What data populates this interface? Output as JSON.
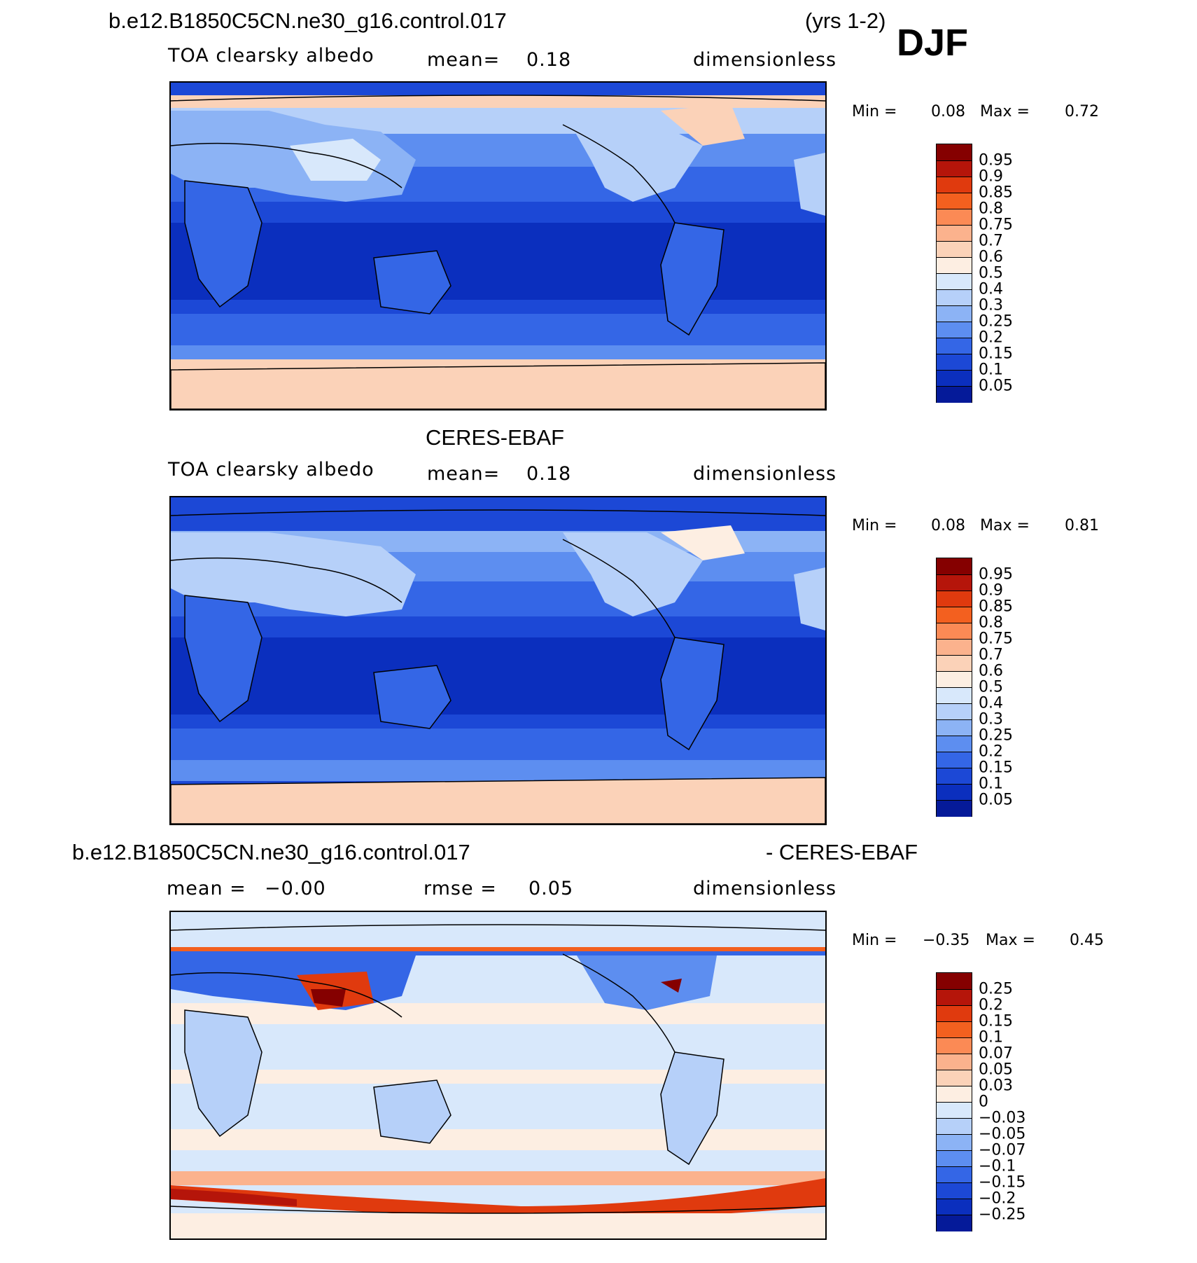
{
  "header": {
    "case_name": "b.e12.B1850C5CN.ne30_g16.control.017",
    "years": "(yrs 1-2)",
    "season": "DJF"
  },
  "panels": [
    {
      "id": "model",
      "title": "",
      "variable": "TOA clearsky albedo",
      "mean_label": "mean=",
      "mean_value": "0.18",
      "units": "dimensionless",
      "min_label": "Min =",
      "min_value": "0.08",
      "max_label": "Max =",
      "max_value": "0.72",
      "colorbar_labels": [
        "0.95",
        "0.9",
        "0.85",
        "0.8",
        "0.75",
        "0.7",
        "0.6",
        "0.5",
        "0.4",
        "0.3",
        "0.25",
        "0.2",
        "0.15",
        "0.1",
        "0.05"
      ]
    },
    {
      "id": "obs",
      "title": "CERES-EBAF",
      "variable": "TOA clearsky albedo",
      "mean_label": "mean=",
      "mean_value": "0.18",
      "units": "dimensionless",
      "min_label": "Min =",
      "min_value": "0.08",
      "max_label": "Max =",
      "max_value": "0.81",
      "colorbar_labels": [
        "0.95",
        "0.9",
        "0.85",
        "0.8",
        "0.75",
        "0.7",
        "0.6",
        "0.5",
        "0.4",
        "0.3",
        "0.25",
        "0.2",
        "0.15",
        "0.1",
        "0.05"
      ]
    },
    {
      "id": "diff",
      "title_left": "b.e12.B1850C5CN.ne30_g16.control.017",
      "title_right": "- CERES-EBAF",
      "mean_label": "mean =",
      "mean_value": "−0.00",
      "rmse_label": "rmse =",
      "rmse_value": "0.05",
      "units": "dimensionless",
      "min_label": "Min =",
      "min_value": "−0.35",
      "max_label": "Max =",
      "max_value": "0.45",
      "colorbar_labels": [
        "0.25",
        "0.2",
        "0.15",
        "0.1",
        "0.07",
        "0.05",
        "0.03",
        "0",
        "−0.03",
        "−0.05",
        "−0.07",
        "−0.1",
        "−0.15",
        "−0.2",
        "−0.25"
      ]
    }
  ],
  "colors": {
    "scale": [
      "#850000",
      "#b5150a",
      "#e03a0e",
      "#f3601f",
      "#fb8a55",
      "#fbb28d",
      "#fbd2b8",
      "#fdeee2",
      "#d8e8fb",
      "#b6d0f9",
      "#8cb3f5",
      "#5d8ef0",
      "#3466e6",
      "#1c48d6",
      "#0b2fbe",
      "#051a99"
    ]
  }
}
